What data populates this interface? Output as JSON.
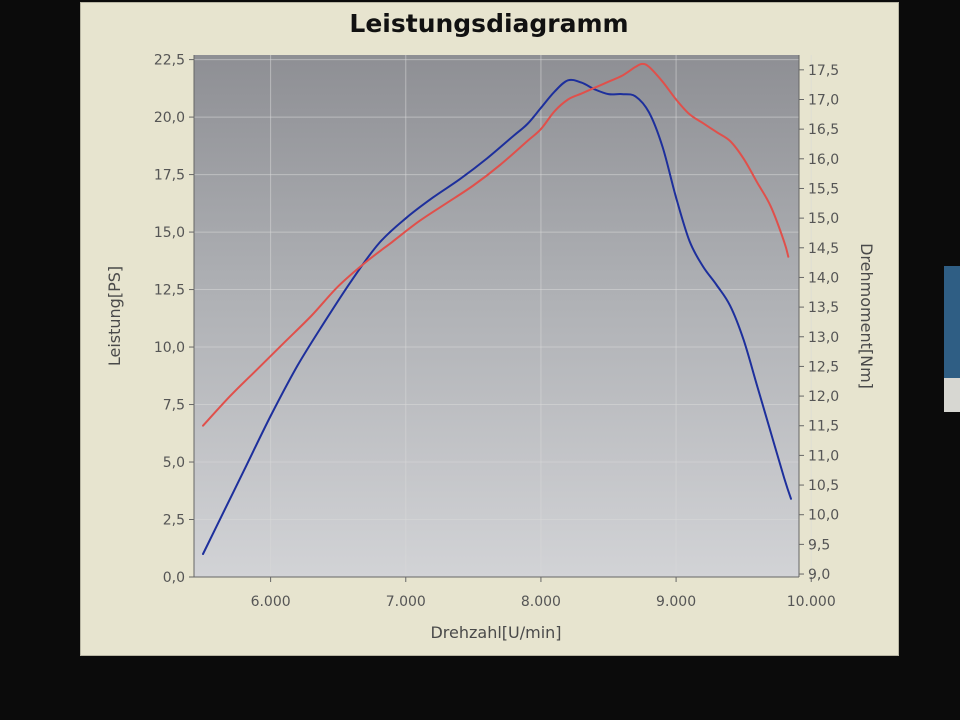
{
  "chart_data": {
    "type": "line",
    "title": "Leistungsdiagramm",
    "xlabel": "Drehzahl[U/min]",
    "ylabel": "Leistung[PS]",
    "y2label": "Drehmoment[Nm]",
    "xlim": [
      5300,
      10050
    ],
    "ylim": [
      0,
      22.7
    ],
    "y2lim": [
      8.95,
      17.75
    ],
    "xticks": [
      6000,
      7000,
      8000,
      9000,
      10000
    ],
    "xtick_labels": [
      "6.000",
      "7.000",
      "8.000",
      "9.000",
      "10.000"
    ],
    "yticks": [
      0,
      2.5,
      5,
      7.5,
      10,
      12.5,
      15,
      17.5,
      20,
      22.5
    ],
    "ytick_labels": [
      "0,0",
      "2,5",
      "5,0",
      "7,5",
      "10,0",
      "12,5",
      "15,0",
      "17,5",
      "20,0",
      "22,5"
    ],
    "y2ticks": [
      9,
      9.5,
      10,
      10.5,
      11,
      11.5,
      12,
      12.5,
      13,
      13.5,
      14,
      14.5,
      15,
      15.5,
      16,
      16.5,
      17,
      17.5
    ],
    "y2tick_labels": [
      "9,0",
      "9,5",
      "10,0",
      "10,5",
      "11,0",
      "11,5",
      "12,0",
      "12,5",
      "13,0",
      "13,5",
      "14,0",
      "14,5",
      "15,0",
      "15,5",
      "16,0",
      "16,5",
      "17,0",
      "17,5"
    ],
    "grid": true,
    "series": [
      {
        "color": "#1d2f9c",
        "axis": "left",
        "x": [
          5500,
          5600,
          5800,
          6000,
          6200,
          6400,
          6600,
          6800,
          7000,
          7200,
          7400,
          7600,
          7800,
          7900,
          8000,
          8100,
          8200,
          8300,
          8400,
          8500,
          8600,
          8700,
          8800,
          8900,
          9000,
          9100,
          9200,
          9300,
          9400,
          9500,
          9600,
          9700,
          9800,
          9850
        ],
        "y": [
          1.0,
          2.2,
          4.6,
          7.0,
          9.2,
          11.1,
          12.9,
          14.5,
          15.6,
          16.5,
          17.3,
          18.2,
          19.2,
          19.7,
          20.4,
          21.1,
          21.6,
          21.5,
          21.2,
          21.0,
          21.0,
          20.9,
          20.2,
          18.7,
          16.5,
          14.6,
          13.5,
          12.7,
          11.8,
          10.3,
          8.3,
          6.3,
          4.3,
          3.4
        ]
      },
      {
        "color": "#e0504b",
        "axis": "right",
        "x": [
          5500,
          5700,
          5900,
          6100,
          6300,
          6500,
          6700,
          6900,
          7100,
          7300,
          7500,
          7700,
          7900,
          8000,
          8100,
          8200,
          8300,
          8400,
          8500,
          8600,
          8700,
          8750,
          8800,
          8900,
          9000,
          9100,
          9200,
          9300,
          9400,
          9500,
          9600,
          9700,
          9800,
          9830
        ],
        "y": [
          11.5,
          12.0,
          12.45,
          12.9,
          13.35,
          13.85,
          14.25,
          14.6,
          14.95,
          15.25,
          15.55,
          15.9,
          16.3,
          16.5,
          16.8,
          17.0,
          17.1,
          17.2,
          17.3,
          17.4,
          17.55,
          17.6,
          17.55,
          17.3,
          17.0,
          16.75,
          16.6,
          16.45,
          16.3,
          16.0,
          15.6,
          15.2,
          14.6,
          14.35
        ]
      }
    ]
  }
}
